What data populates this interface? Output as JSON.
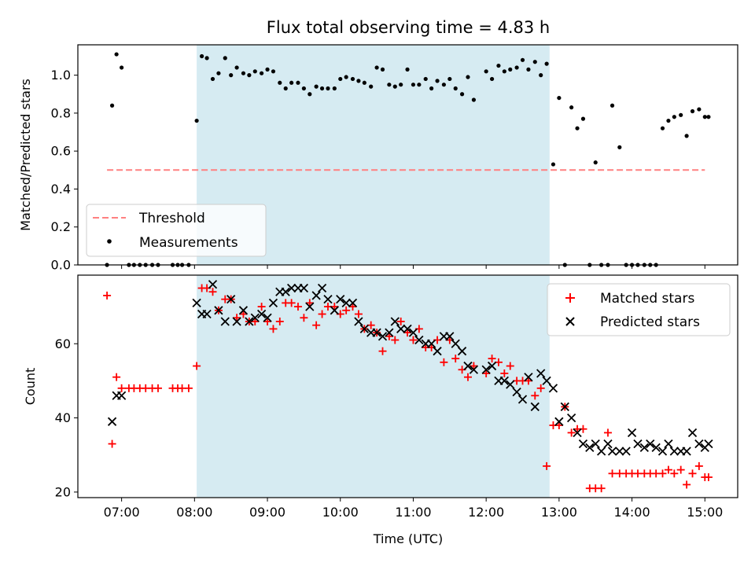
{
  "chart_data": [
    {
      "type": "scatter",
      "title": "Flux total observing time = 4.83 h",
      "ylabel": "Matched/Predicted stars",
      "xlabel": "",
      "xlim_hours": [
        6.4,
        15.45
      ],
      "ylim": [
        0,
        1.16
      ],
      "yticks": [
        "0.0",
        "0.2",
        "0.4",
        "0.6",
        "0.8",
        "1.0"
      ],
      "ytick_values": [
        0,
        0.2,
        0.4,
        0.6,
        0.8,
        1.0
      ],
      "shaded_span_hours": [
        8.03,
        12.87
      ],
      "shade_color": "#add8e6",
      "legend_position": "lower-left",
      "threshold": {
        "name": "Threshold",
        "value": 0.5,
        "x_range_hours": [
          6.8,
          15.0
        ],
        "color": "#ff8080"
      },
      "series": [
        {
          "name": "Measurements",
          "color": "#000000",
          "x_hours": [
            6.8,
            6.87,
            6.93,
            7.0,
            7.1,
            7.17,
            7.25,
            7.33,
            7.42,
            7.5,
            7.7,
            7.77,
            7.83,
            7.92,
            8.03,
            8.1,
            8.17,
            8.25,
            8.33,
            8.42,
            8.5,
            8.58,
            8.67,
            8.75,
            8.83,
            8.92,
            9.0,
            9.08,
            9.17,
            9.25,
            9.33,
            9.42,
            9.5,
            9.58,
            9.67,
            9.75,
            9.83,
            9.92,
            10.0,
            10.08,
            10.17,
            10.25,
            10.33,
            10.42,
            10.5,
            10.58,
            10.67,
            10.75,
            10.83,
            10.92,
            11.0,
            11.08,
            11.17,
            11.25,
            11.33,
            11.42,
            11.5,
            11.58,
            11.67,
            11.75,
            11.83,
            12.0,
            12.08,
            12.17,
            12.25,
            12.33,
            12.42,
            12.5,
            12.58,
            12.67,
            12.75,
            12.83,
            12.92,
            13.0,
            13.08,
            13.17,
            13.25,
            13.33,
            13.42,
            13.5,
            13.58,
            13.67,
            13.73,
            13.83,
            13.92,
            14.0,
            14.08,
            14.17,
            14.25,
            14.33,
            14.42,
            14.5,
            14.58,
            14.67,
            14.75,
            14.83,
            14.92,
            15.0,
            15.05
          ],
          "y": [
            0.0,
            0.84,
            1.11,
            1.04,
            0.0,
            0.0,
            0.0,
            0.0,
            0.0,
            0.0,
            0.0,
            0.0,
            0.0,
            0.0,
            0.76,
            1.1,
            1.09,
            0.98,
            1.01,
            1.09,
            1.0,
            1.04,
            1.01,
            1.0,
            1.02,
            1.01,
            1.03,
            1.02,
            0.96,
            0.93,
            0.96,
            0.96,
            0.93,
            0.9,
            0.94,
            0.93,
            0.93,
            0.93,
            0.98,
            0.99,
            0.98,
            0.97,
            0.96,
            0.94,
            1.04,
            1.03,
            0.95,
            0.94,
            0.95,
            1.03,
            0.95,
            0.95,
            0.98,
            0.93,
            0.97,
            0.95,
            0.98,
            0.93,
            0.9,
            0.99,
            0.87,
            1.02,
            0.98,
            1.05,
            1.02,
            1.03,
            1.04,
            1.08,
            1.03,
            1.07,
            1.0,
            1.06,
            0.53,
            0.88,
            0.0,
            0.83,
            0.72,
            0.77,
            0.0,
            0.54,
            0.0,
            0.0,
            0.84,
            0.62,
            0.0,
            0.0,
            0.0,
            0.0,
            0.0,
            0.0,
            0.72,
            0.76,
            0.78,
            0.79,
            0.68,
            0.81,
            0.82,
            0.78,
            0.78
          ]
        }
      ]
    },
    {
      "type": "scatter",
      "title": "",
      "ylabel": "Count",
      "xlabel": "Time (UTC)",
      "xlim_hours": [
        6.4,
        15.45
      ],
      "ylim": [
        18.5,
        78.5
      ],
      "yticks": [
        "20",
        "40",
        "60"
      ],
      "ytick_values": [
        20,
        40,
        60
      ],
      "xticks": [
        "07:00",
        "08:00",
        "09:00",
        "10:00",
        "11:00",
        "12:00",
        "13:00",
        "14:00",
        "15:00"
      ],
      "xtick_values_hours": [
        7,
        8,
        9,
        10,
        11,
        12,
        13,
        14,
        15
      ],
      "shaded_span_hours": [
        8.03,
        12.87
      ],
      "shade_color": "#add8e6",
      "legend_position": "upper-right",
      "series": [
        {
          "name": "Matched stars",
          "marker": "plus",
          "color": "#ff0000",
          "x_hours": [
            6.8,
            6.87,
            6.93,
            7.0,
            7.1,
            7.17,
            7.25,
            7.33,
            7.42,
            7.5,
            7.7,
            7.77,
            7.83,
            7.92,
            8.03,
            8.1,
            8.17,
            8.25,
            8.33,
            8.42,
            8.5,
            8.58,
            8.67,
            8.75,
            8.83,
            8.92,
            9.0,
            9.08,
            9.17,
            9.25,
            9.33,
            9.42,
            9.5,
            9.58,
            9.67,
            9.75,
            9.83,
            9.92,
            10.0,
            10.08,
            10.17,
            10.25,
            10.33,
            10.42,
            10.5,
            10.58,
            10.67,
            10.75,
            10.83,
            10.92,
            11.0,
            11.08,
            11.17,
            11.25,
            11.33,
            11.42,
            11.5,
            11.58,
            11.67,
            11.75,
            11.83,
            12.0,
            12.08,
            12.17,
            12.25,
            12.33,
            12.42,
            12.5,
            12.58,
            12.67,
            12.75,
            12.83,
            12.92,
            13.0,
            13.08,
            13.17,
            13.25,
            13.33,
            13.42,
            13.5,
            13.58,
            13.67,
            13.73,
            13.83,
            13.92,
            14.0,
            14.08,
            14.17,
            14.25,
            14.33,
            14.42,
            14.5,
            14.58,
            14.67,
            14.75,
            14.83,
            14.92,
            15.0,
            15.05
          ],
          "y": [
            73,
            33,
            51,
            48,
            48,
            48,
            48,
            48,
            48,
            48,
            48,
            48,
            48,
            48,
            54,
            75,
            75,
            74,
            69,
            72,
            72,
            67,
            68,
            66,
            66,
            70,
            66,
            64,
            66,
            71,
            71,
            70,
            67,
            71,
            65,
            68,
            70,
            70,
            68,
            69,
            70,
            68,
            64,
            65,
            63,
            58,
            62,
            61,
            66,
            63,
            61,
            64,
            59,
            59,
            61,
            55,
            61,
            56,
            53,
            51,
            54,
            52,
            56,
            55,
            52,
            54,
            50,
            50,
            50,
            46,
            48,
            27,
            38,
            38,
            43,
            36,
            37,
            37,
            21,
            21,
            21,
            36,
            25,
            25,
            25,
            25,
            25,
            25,
            25,
            25,
            25,
            26,
            25,
            26,
            22,
            25,
            27,
            24,
            24
          ]
        },
        {
          "name": "Predicted stars",
          "marker": "x",
          "color": "#000000",
          "x_hours": [
            6.87,
            6.93,
            7.0,
            8.03,
            8.1,
            8.17,
            8.25,
            8.33,
            8.42,
            8.5,
            8.58,
            8.67,
            8.75,
            8.83,
            8.92,
            9.0,
            9.08,
            9.17,
            9.25,
            9.33,
            9.42,
            9.5,
            9.58,
            9.67,
            9.75,
            9.83,
            9.92,
            10.0,
            10.08,
            10.17,
            10.25,
            10.33,
            10.42,
            10.5,
            10.58,
            10.67,
            10.75,
            10.83,
            10.92,
            11.0,
            11.08,
            11.17,
            11.25,
            11.33,
            11.42,
            11.5,
            11.58,
            11.67,
            11.75,
            11.83,
            12.0,
            12.08,
            12.17,
            12.25,
            12.33,
            12.42,
            12.5,
            12.58,
            12.67,
            12.75,
            12.83,
            12.92,
            13.0,
            13.08,
            13.17,
            13.25,
            13.33,
            13.42,
            13.5,
            13.58,
            13.67,
            13.73,
            13.83,
            13.92,
            14.0,
            14.08,
            14.17,
            14.25,
            14.33,
            14.42,
            14.5,
            14.58,
            14.67,
            14.75,
            14.83,
            14.92,
            15.0,
            15.05
          ],
          "y": [
            39,
            46,
            46,
            71,
            68,
            68,
            76,
            69,
            66,
            72,
            66,
            69,
            66,
            67,
            68,
            67,
            71,
            74,
            74,
            75,
            75,
            75,
            70,
            73,
            75,
            72,
            69,
            72,
            71,
            71,
            66,
            64,
            63,
            63,
            62,
            63,
            66,
            64,
            64,
            63,
            61,
            60,
            60,
            58,
            62,
            62,
            60,
            58,
            54,
            53,
            53,
            54,
            50,
            50,
            49,
            47,
            45,
            51,
            43,
            52,
            50,
            48,
            39,
            43,
            40,
            36,
            33,
            32,
            33,
            31,
            33,
            31,
            31,
            31,
            36,
            33,
            32,
            33,
            32,
            31,
            33,
            31,
            31,
            31,
            36,
            33,
            32,
            33
          ]
        }
      ]
    }
  ]
}
